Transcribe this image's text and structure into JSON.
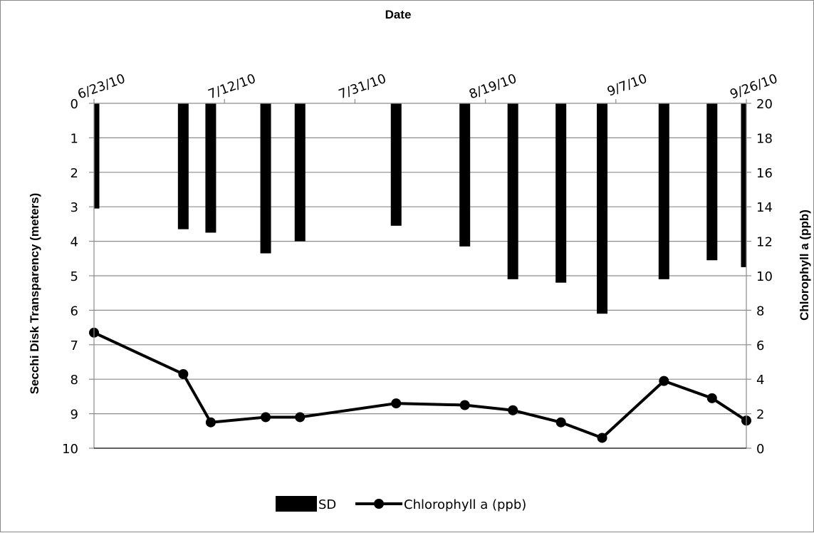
{
  "chart_data": {
    "type": "bar+line",
    "x_axis": {
      "label": "Date",
      "position": "top",
      "tick_labels": [
        "6/23/10",
        "7/12/10",
        "7/31/10",
        "8/19/10",
        "9/7/10",
        "9/26/10"
      ],
      "range": [
        "2010-06-23",
        "2010-09-26"
      ]
    },
    "y_axis_left": {
      "label": "Secchi Disk Transparency (meters)",
      "range": [
        0,
        10
      ],
      "inverted": true,
      "ticks": [
        "0",
        "1",
        "2",
        "3",
        "4",
        "5",
        "6",
        "7",
        "8",
        "9",
        "10"
      ]
    },
    "y_axis_right": {
      "label": "Chlorophyll a (ppb)",
      "range": [
        0,
        20
      ],
      "ticks": [
        "20",
        "18",
        "16",
        "14",
        "12",
        "10",
        "8",
        "6",
        "4",
        "2",
        "0"
      ]
    },
    "x": [
      "2010-06-23",
      "2010-07-06",
      "2010-07-10",
      "2010-07-18",
      "2010-07-23",
      "2010-08-06",
      "2010-08-16",
      "2010-08-23",
      "2010-08-30",
      "2010-09-05",
      "2010-09-14",
      "2010-09-21",
      "2010-09-26"
    ],
    "series": [
      {
        "name": "SD",
        "type": "bar",
        "axis": "left",
        "color": "#000000",
        "values": [
          3.05,
          3.65,
          3.75,
          4.35,
          4.0,
          3.55,
          4.15,
          5.1,
          5.2,
          6.1,
          5.1,
          4.55,
          4.75
        ]
      },
      {
        "name": "Chlorophyll a (ppb)",
        "type": "line",
        "axis": "right",
        "color": "#000000",
        "marker": "circle",
        "values": [
          6.7,
          4.3,
          1.5,
          1.8,
          1.8,
          2.6,
          2.5,
          2.2,
          1.5,
          0.6,
          3.9,
          2.9,
          1.6
        ]
      }
    ],
    "grid": true,
    "legend": "bottom-center"
  }
}
